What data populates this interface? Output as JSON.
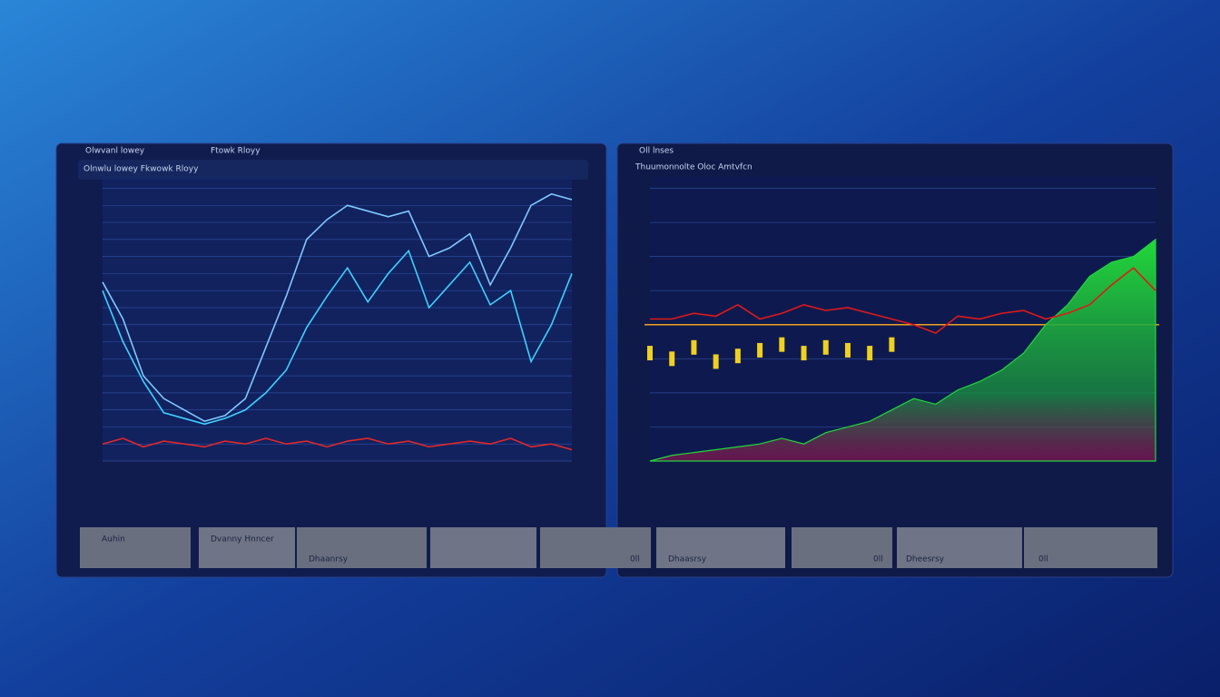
{
  "header": {
    "left_title": "Olwvanl lowey",
    "left_subtitle": "Ftowk Rloyy",
    "right_title": "Oll lnses"
  },
  "chart_data": [
    {
      "type": "line",
      "title": "Olnwlu lowey Fkwowk Rloyy",
      "categories": [
        null,
        null,
        null,
        null,
        null,
        null,
        null,
        null,
        null,
        null,
        null,
        null,
        null,
        null,
        null,
        null,
        null,
        null,
        null,
        null,
        null,
        null,
        null,
        null
      ],
      "ylim": [
        0,
        100
      ],
      "yticks": [
        0,
        6,
        12,
        18,
        24,
        30,
        36,
        42,
        48,
        54,
        60,
        66,
        72,
        78,
        84,
        90,
        96
      ],
      "grid": true,
      "series": [
        {
          "style": "line",
          "color": "#7fc8ff",
          "values": [
            63,
            50,
            30,
            22,
            18,
            14,
            16,
            22,
            40,
            58,
            78,
            85,
            90,
            88,
            86,
            88,
            72,
            75,
            80,
            62,
            75,
            90,
            94,
            92
          ]
        },
        {
          "style": "line",
          "color": "#3fd0ff",
          "values": [
            60,
            42,
            28,
            17,
            15,
            13,
            15,
            18,
            24,
            32,
            47,
            58,
            68,
            56,
            66,
            74,
            54,
            62,
            70,
            55,
            60,
            35,
            48,
            66
          ]
        },
        {
          "style": "line",
          "color": "#e02828",
          "values": [
            6,
            8,
            5,
            7,
            6,
            5,
            7,
            6,
            8,
            6,
            7,
            5,
            7,
            8,
            6,
            7,
            5,
            6,
            7,
            6,
            8,
            5,
            6,
            4
          ]
        }
      ]
    },
    {
      "type": "line",
      "title": "Thuumonnolte Oloc Amtvfcn",
      "categories": [
        null,
        null,
        null,
        null,
        null,
        null,
        null,
        null,
        null,
        null,
        null,
        null,
        null,
        null,
        null,
        null,
        null,
        null,
        null,
        null,
        null,
        null,
        null,
        null
      ],
      "ylim": [
        0,
        100
      ],
      "yticks": [
        0,
        12,
        24,
        36,
        48,
        60,
        72,
        84,
        96
      ],
      "grid": true,
      "reference": {
        "value": 48,
        "color": "#f0a020"
      },
      "series": [
        {
          "style": "area",
          "color": "#22d83a",
          "values": [
            0,
            2,
            3,
            4,
            5,
            6,
            8,
            6,
            10,
            12,
            14,
            18,
            22,
            20,
            25,
            28,
            32,
            38,
            48,
            55,
            65,
            70,
            72,
            78
          ]
        },
        {
          "style": "line",
          "color": "#e01818",
          "values": [
            50,
            50,
            52,
            51,
            55,
            50,
            52,
            55,
            53,
            54,
            52,
            50,
            48,
            45,
            51,
            50,
            52,
            53,
            50,
            52,
            55,
            62,
            68,
            60
          ]
        },
        {
          "style": "candles",
          "color": "#f0d020",
          "values": [
            38,
            36,
            40,
            35,
            37,
            39,
            41,
            38,
            40,
            39,
            38,
            41,
            null,
            null,
            null,
            null,
            null,
            null,
            null,
            null,
            null,
            null,
            null,
            null
          ]
        }
      ]
    }
  ],
  "buttons": [
    "Auhin",
    "Dvanny Hnncer",
    "Dhaanrsy",
    "0ll",
    "Dhaasrsy",
    "0ll",
    "Dheesrsy",
    "0ll"
  ]
}
